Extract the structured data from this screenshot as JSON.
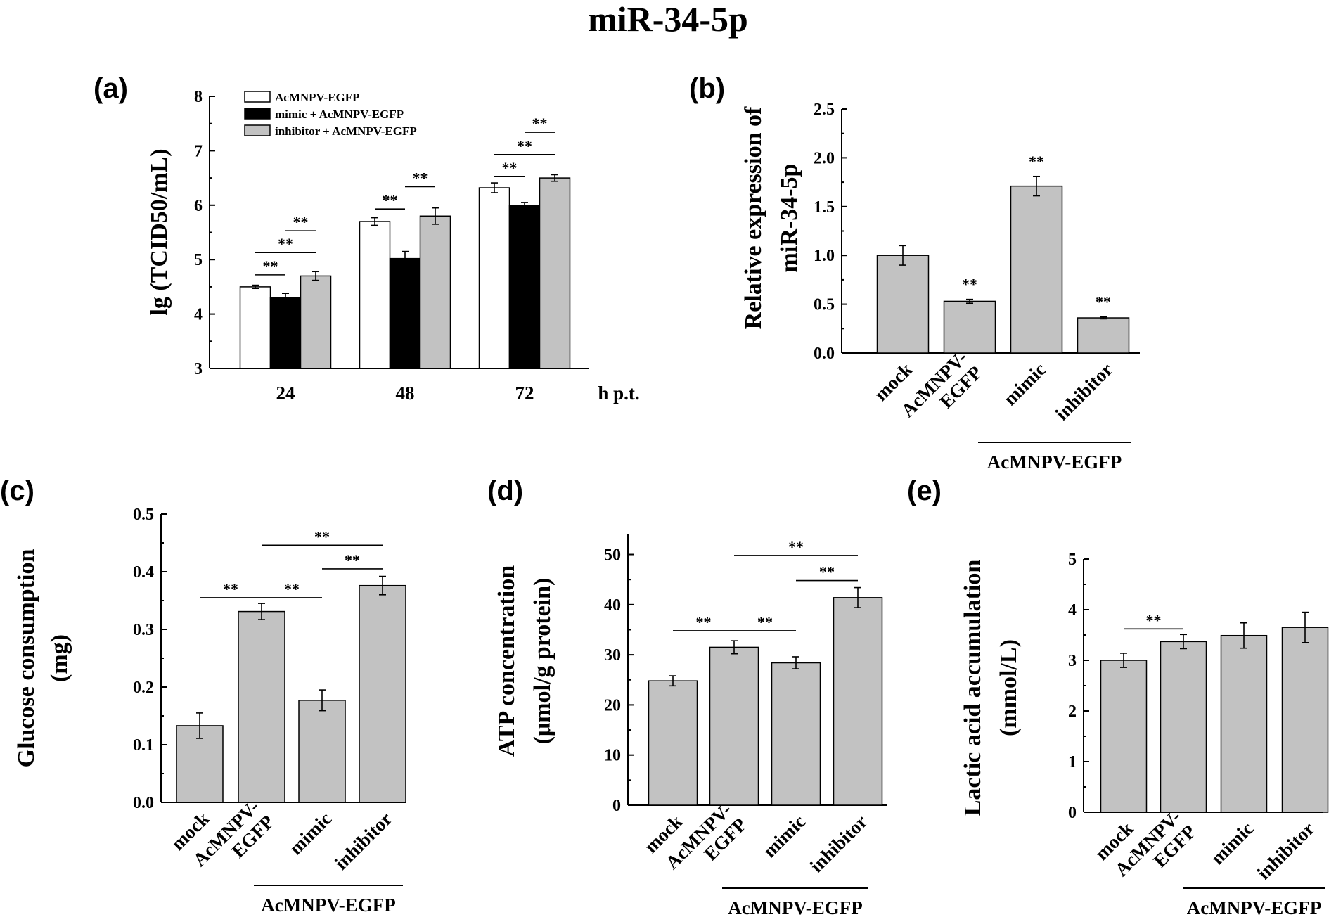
{
  "figure_title": "miR-34-5p",
  "colors": {
    "white": "#ffffff",
    "black": "#000000",
    "gray": "#c2c2c2"
  },
  "chart_data": [
    {
      "id": "a",
      "panel_label": "(a)",
      "type": "bar",
      "ylabel": "lg (TCID50/mL)",
      "xlabel": "h p.t.",
      "ylim": [
        3,
        8
      ],
      "yticks": [
        3,
        4,
        5,
        6,
        7,
        8
      ],
      "categories": [
        "24",
        "48",
        "72"
      ],
      "series": [
        {
          "name": "AcMNPV-EGFP",
          "color": "white",
          "values": [
            4.5,
            5.7,
            6.32
          ],
          "errors": [
            0.03,
            0.07,
            0.09
          ]
        },
        {
          "name": "mimic + AcMNPV-EGFP",
          "color": "black",
          "values": [
            4.3,
            5.02,
            6.0
          ],
          "errors": [
            0.08,
            0.13,
            0.05
          ]
        },
        {
          "name": "inhibitor + AcMNPV-EGFP",
          "color": "gray",
          "values": [
            4.7,
            5.8,
            6.5
          ],
          "errors": [
            0.08,
            0.15,
            0.06
          ]
        }
      ],
      "significance": [
        {
          "cat": 0,
          "from": 0,
          "to": 1,
          "y": 4.72,
          "label": "**"
        },
        {
          "cat": 0,
          "from": 0,
          "to": 2,
          "y": 5.13,
          "label": "**"
        },
        {
          "cat": 0,
          "from": 1,
          "to": 2,
          "y": 5.53,
          "label": "**"
        },
        {
          "cat": 1,
          "from": 0,
          "to": 1,
          "y": 5.93,
          "label": "**"
        },
        {
          "cat": 1,
          "from": 1,
          "to": 2,
          "y": 6.34,
          "label": "**"
        },
        {
          "cat": 2,
          "from": 0,
          "to": 1,
          "y": 6.53,
          "label": "**"
        },
        {
          "cat": 2,
          "from": 0,
          "to": 2,
          "y": 6.93,
          "label": "**"
        },
        {
          "cat": 2,
          "from": 1,
          "to": 2,
          "y": 7.34,
          "label": "**"
        }
      ]
    },
    {
      "id": "b",
      "panel_label": "(b)",
      "type": "bar",
      "ylabel_lines": [
        "Relative expression of",
        "miR-34-5p"
      ],
      "ylim": [
        0,
        2.5
      ],
      "yticks": [
        "0.0",
        "0.5",
        "1.0",
        "1.5",
        "2.0",
        "2.5"
      ],
      "categories": [
        "mock",
        "AcMNPV-|EGFP",
        "mimic",
        "inhibitor"
      ],
      "values": [
        1.0,
        0.53,
        1.71,
        0.36
      ],
      "errors": [
        0.1,
        0.02,
        0.1,
        0.01
      ],
      "stars": [
        "",
        "**",
        "**",
        "**"
      ],
      "group_label": "AcMNPV-EGFP"
    },
    {
      "id": "c",
      "panel_label": "(c)",
      "type": "bar",
      "ylabel_lines": [
        "Glucose consumption",
        "(mg)"
      ],
      "ylim": [
        0,
        0.5
      ],
      "yticks": [
        "0.0",
        "0.1",
        "0.2",
        "0.3",
        "0.4",
        "0.5"
      ],
      "categories": [
        "mock",
        "AcMNPV-|EGFP",
        "mimic",
        "inhibitor"
      ],
      "values": [
        0.133,
        0.331,
        0.177,
        0.376
      ],
      "errors": [
        0.022,
        0.014,
        0.018,
        0.016
      ],
      "significance": [
        {
          "from": 0,
          "to": 1,
          "y": 0.355,
          "label": "**"
        },
        {
          "from": 1,
          "to": 2,
          "y": 0.355,
          "label": "**"
        },
        {
          "from": 2,
          "to": 3,
          "y": 0.405,
          "label": "**"
        },
        {
          "from": 1,
          "to": 3,
          "y": 0.446,
          "label": "**"
        }
      ],
      "group_label": "AcMNPV-EGFP"
    },
    {
      "id": "d",
      "panel_label": "(d)",
      "type": "bar",
      "ylabel_lines": [
        "ATP concentration",
        "(μmol/g protein)"
      ],
      "ylim": [
        0,
        54
      ],
      "yticks": [
        "0",
        "10",
        "20",
        "30",
        "40",
        "50"
      ],
      "categories": [
        "mock",
        "AcMNPV-|EGFP",
        "mimic",
        "inhibitor"
      ],
      "values": [
        24.8,
        31.5,
        28.4,
        41.4
      ],
      "errors": [
        1.0,
        1.3,
        1.2,
        2.0
      ],
      "significance": [
        {
          "from": 0,
          "to": 1,
          "y": 34.8,
          "label": "**"
        },
        {
          "from": 1,
          "to": 2,
          "y": 34.8,
          "label": "**"
        },
        {
          "from": 2,
          "to": 3,
          "y": 44.8,
          "label": "**"
        },
        {
          "from": 1,
          "to": 3,
          "y": 49.8,
          "label": "**"
        }
      ],
      "group_label": "AcMNPV-EGFP"
    },
    {
      "id": "e",
      "panel_label": "(e)",
      "type": "bar",
      "ylabel_lines": [
        "Lactic acid accumulation",
        "(mmol/L)"
      ],
      "ylim": [
        0,
        5
      ],
      "yticks": [
        "0",
        "1",
        "2",
        "3",
        "4",
        "5"
      ],
      "categories": [
        "mock",
        "AcMNPV-|EGFP",
        "mimic",
        "inhibitor"
      ],
      "values": [
        3.0,
        3.37,
        3.49,
        3.65
      ],
      "errors": [
        0.14,
        0.14,
        0.25,
        0.3
      ],
      "significance": [
        {
          "from": 0,
          "to": 1,
          "y": 3.62,
          "label": "**"
        }
      ],
      "group_label": "AcMNPV-EGFP"
    }
  ]
}
